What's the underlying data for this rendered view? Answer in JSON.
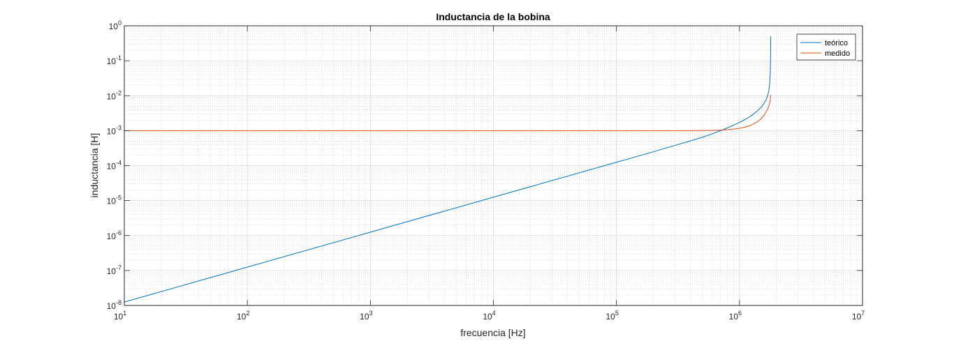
{
  "chart_data": {
    "type": "line",
    "title": "Inductancia de la bobina",
    "xlabel": "frecuencia [Hz]",
    "ylabel": "inductancia [H]",
    "x_scale": "log",
    "y_scale": "log",
    "xlim": [
      10,
      10000000
    ],
    "ylim": [
      1e-08,
      1
    ],
    "grid": true,
    "minor_grid": true,
    "legend_position": "top-right",
    "x_ticks": [
      {
        "base": "10",
        "exp": "1"
      },
      {
        "base": "10",
        "exp": "2"
      },
      {
        "base": "10",
        "exp": "3"
      },
      {
        "base": "10",
        "exp": "4"
      },
      {
        "base": "10",
        "exp": "5"
      },
      {
        "base": "10",
        "exp": "6"
      },
      {
        "base": "10",
        "exp": "7"
      }
    ],
    "y_ticks": [
      {
        "base": "10",
        "exp": "-8"
      },
      {
        "base": "10",
        "exp": "-7"
      },
      {
        "base": "10",
        "exp": "-6"
      },
      {
        "base": "10",
        "exp": "-5"
      },
      {
        "base": "10",
        "exp": "-4"
      },
      {
        "base": "10",
        "exp": "-3"
      },
      {
        "base": "10",
        "exp": "-2"
      },
      {
        "base": "10",
        "exp": "-1"
      },
      {
        "base": "10",
        "exp": "0"
      }
    ],
    "series": [
      {
        "name": "teórico",
        "color": "#0072bd",
        "x": [
          10,
          100,
          1000,
          10000,
          100000,
          200000,
          300000,
          400000,
          500000,
          600000,
          700000,
          800000,
          900000,
          1000000,
          1100000,
          1200000,
          1300000,
          1400000,
          1500000,
          1600000,
          1650000,
          1700000,
          1730000,
          1760000,
          1780000,
          1790000,
          1795000
        ],
        "y": [
          1.25e-08,
          1.25e-07,
          1.25e-06,
          1.25e-05,
          0.000125,
          0.00025,
          0.00038,
          0.00051,
          0.00065,
          0.00081,
          0.001,
          0.00121,
          0.00145,
          0.00172,
          0.00205,
          0.00245,
          0.003,
          0.0037,
          0.0047,
          0.0064,
          0.0078,
          0.0105,
          0.0135,
          0.022,
          0.045,
          0.12,
          0.5
        ]
      },
      {
        "name": "medido",
        "color": "#d95319",
        "x": [
          10,
          100,
          1000,
          10000,
          100000,
          200000,
          300000,
          400000,
          500000,
          600000,
          700000,
          800000,
          900000,
          1000000,
          1100000,
          1200000,
          1300000,
          1400000,
          1500000,
          1600000,
          1700000,
          1750000,
          1780000,
          1790000,
          1800000
        ],
        "y": [
          0.001,
          0.001,
          0.001,
          0.001,
          0.001,
          0.001,
          0.001,
          0.001,
          0.00101,
          0.00102,
          0.00104,
          0.00107,
          0.00111,
          0.00117,
          0.00125,
          0.00137,
          0.00155,
          0.0018,
          0.0022,
          0.0029,
          0.0042,
          0.0056,
          0.0075,
          0.0095,
          0.0105
        ]
      }
    ]
  }
}
